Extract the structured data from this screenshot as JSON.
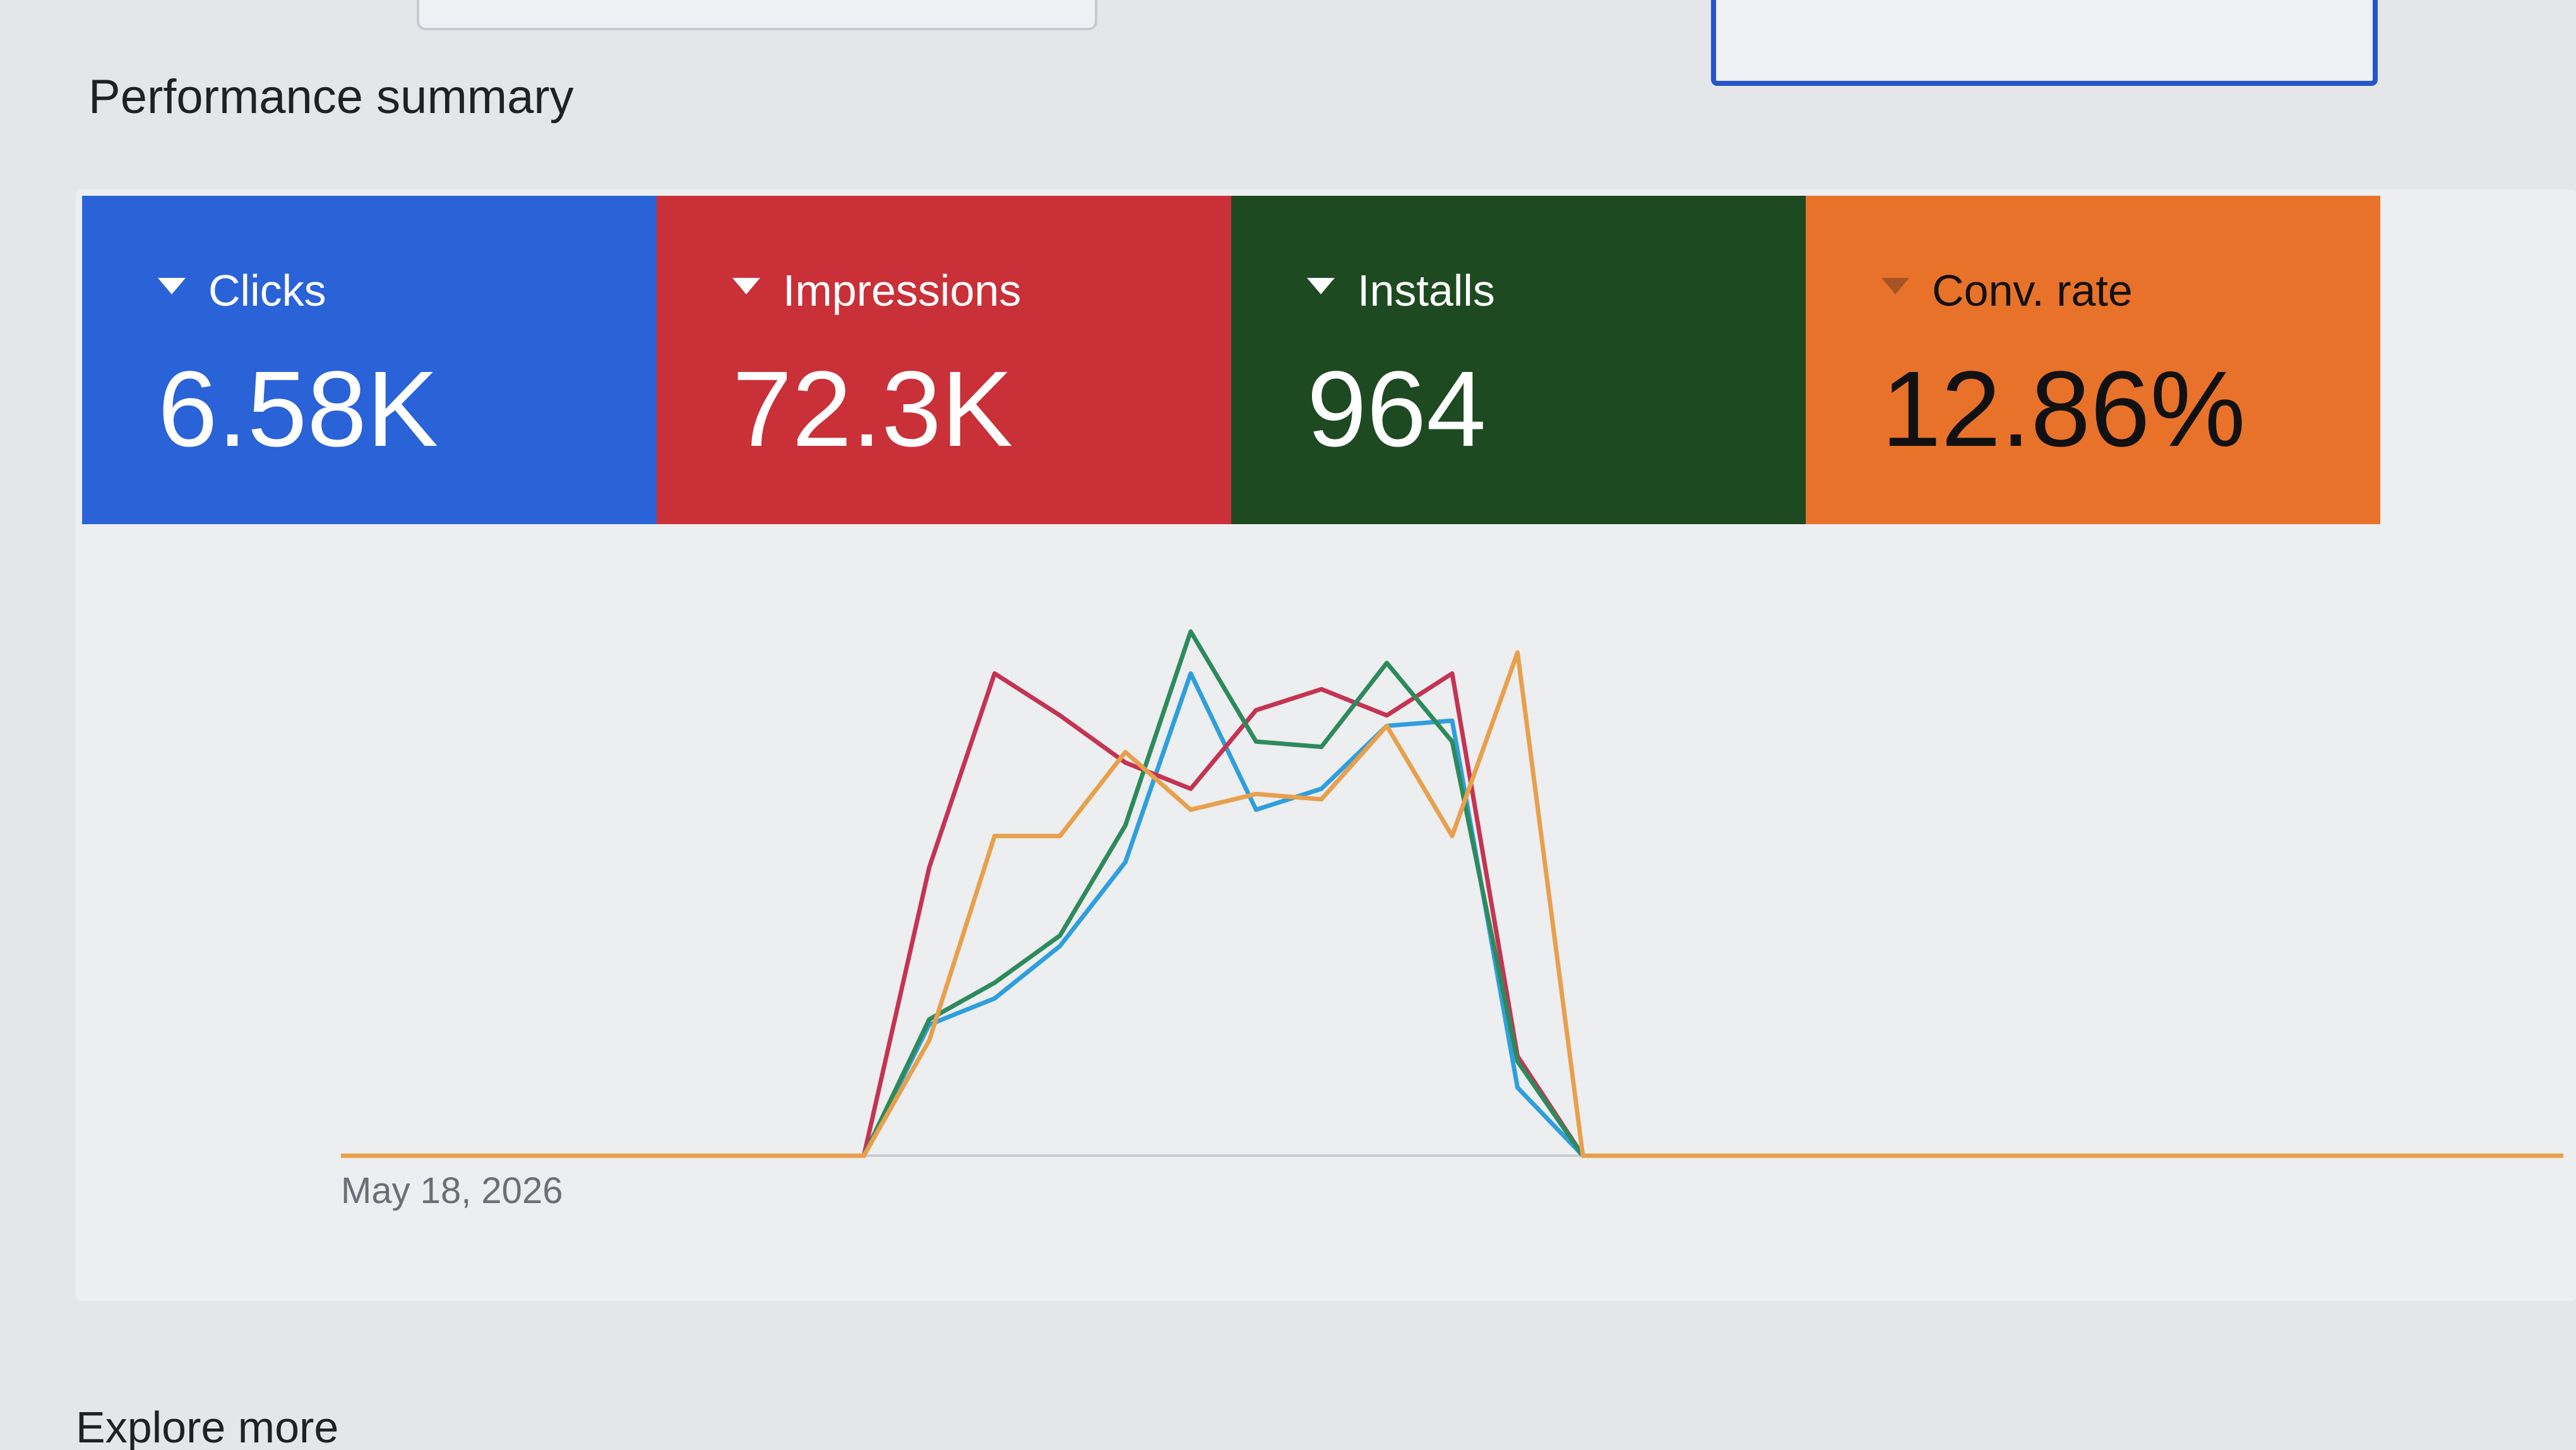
{
  "header": {
    "title": "Performance summary"
  },
  "chart_data": {
    "type": "line",
    "categories": [
      "May 18, 2026",
      null,
      null,
      null,
      null,
      null,
      null,
      null,
      null,
      null,
      null,
      null,
      null,
      null,
      null,
      null,
      null,
      null,
      null,
      null,
      null,
      null,
      null,
      null,
      null,
      null,
      null,
      null,
      null,
      null,
      null,
      null,
      null,
      null,
      null
    ],
    "ylim": [
      0,
      100
    ],
    "series": [
      {
        "name": "Clicks",
        "summary": "6.58K",
        "card_color": "#2a62d8",
        "color": "#2f9fdc",
        "values": [
          0,
          0,
          0,
          0,
          0,
          0,
          0,
          0,
          0,
          25,
          30,
          40,
          56,
          92,
          66,
          70,
          82,
          83,
          13,
          0,
          0,
          0,
          0,
          0,
          0,
          0,
          0,
          0,
          0,
          0,
          0,
          0,
          0,
          0,
          0
        ]
      },
      {
        "name": "Impressions",
        "summary": "72.3K",
        "card_color": "#c93038",
        "color": "#c43452",
        "values": [
          0,
          0,
          0,
          0,
          0,
          0,
          0,
          0,
          0,
          55,
          92,
          84,
          75,
          70,
          85,
          89,
          84,
          92,
          19,
          0,
          0,
          0,
          0,
          0,
          0,
          0,
          0,
          0,
          0,
          0,
          0,
          0,
          0,
          0,
          0
        ]
      },
      {
        "name": "Installs",
        "summary": "964",
        "card_color": "#1e4a22",
        "color": "#2e8a5c",
        "values": [
          0,
          0,
          0,
          0,
          0,
          0,
          0,
          0,
          0,
          26,
          33,
          42,
          63,
          100,
          79,
          78,
          94,
          79,
          18,
          0,
          0,
          0,
          0,
          0,
          0,
          0,
          0,
          0,
          0,
          0,
          0,
          0,
          0,
          0,
          0
        ]
      },
      {
        "name": "Conv. rate",
        "summary": "12.86%",
        "card_color": "#e8722a",
        "summary_color": "#111111",
        "color": "#e8a04c",
        "values": [
          0,
          0,
          0,
          0,
          0,
          0,
          0,
          0,
          0,
          22,
          61,
          61,
          77,
          66,
          69,
          68,
          82,
          61,
          96,
          0,
          0,
          0,
          0,
          0,
          0,
          0,
          0,
          0,
          0,
          0,
          0,
          0,
          0,
          0,
          0
        ]
      }
    ]
  },
  "footer": {
    "title": "Explore more"
  }
}
